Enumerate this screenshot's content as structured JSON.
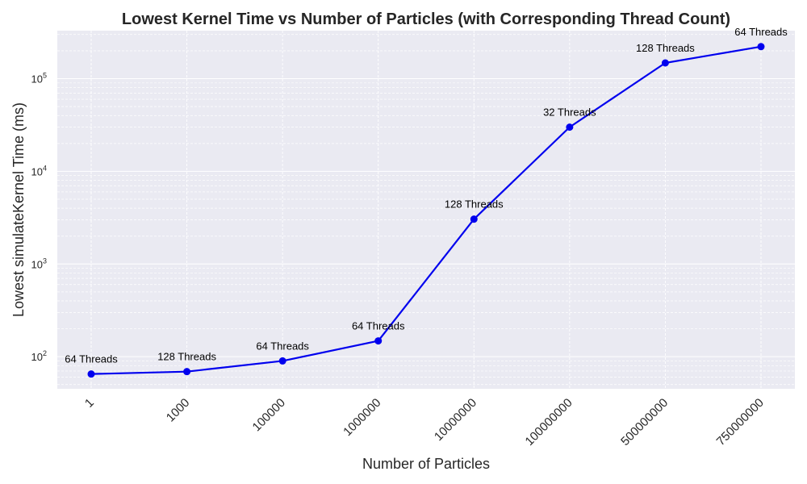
{
  "chart_data": {
    "type": "line",
    "title": "Lowest Kernel Time vs Number of Particles (with Corresponding Thread Count)",
    "xlabel": "Number of Particles",
    "ylabel": "Lowest simulateKernel Time (ms)",
    "y_scale": "log",
    "ylim": [
      45,
      330000
    ],
    "y_ticks": [
      {
        "base": "10",
        "exp": "2",
        "value": 100
      },
      {
        "base": "10",
        "exp": "3",
        "value": 1000
      },
      {
        "base": "10",
        "exp": "4",
        "value": 10000
      },
      {
        "base": "10",
        "exp": "5",
        "value": 100000
      }
    ],
    "categories": [
      "1",
      "1000",
      "100000",
      "1000000",
      "10000000",
      "100000000",
      "500000000",
      "750000000"
    ],
    "series": [
      {
        "values": [
          65,
          69,
          90,
          148,
          3050,
          30000,
          148000,
          222000
        ],
        "annotations": [
          "64 Threads",
          "128 Threads",
          "64 Threads",
          "64 Threads",
          "128 Threads",
          "32 Threads",
          "128 Threads",
          "64 Threads"
        ]
      }
    ],
    "grid": true,
    "colors": {
      "line": "#0000ee",
      "plot_background": "#eaeaf2",
      "grid": "#ffffff"
    }
  }
}
